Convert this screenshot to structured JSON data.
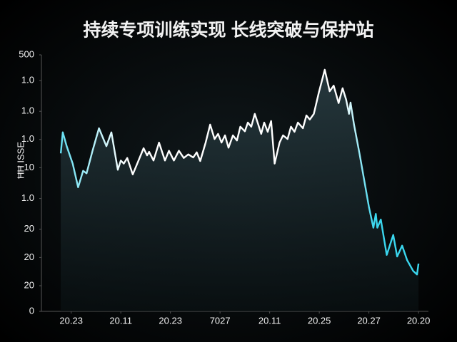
{
  "chart_data": {
    "type": "line",
    "title": "持续专项训练实现 长线突破与保护站",
    "ylabel": "ĦĦ ISSE",
    "xlim": [
      -6,
      72
    ],
    "ylim": [
      0,
      500
    ],
    "xticks": [
      {
        "value": 0,
        "label": "20.23"
      },
      {
        "value": 10,
        "label": "20.11"
      },
      {
        "value": 20,
        "label": "20.23"
      },
      {
        "value": 30,
        "label": "7027"
      },
      {
        "value": 40,
        "label": "20.11"
      },
      {
        "value": 50,
        "label": "20.25"
      },
      {
        "value": 60,
        "label": "20.27"
      },
      {
        "value": 70,
        "label": "20.20"
      }
    ],
    "yticks": [
      0,
      {
        "value": 50,
        "label": "20"
      },
      {
        "value": 105,
        "label": "20"
      },
      {
        "value": 160,
        "label": "20"
      },
      {
        "value": 220,
        "label": "1.0"
      },
      {
        "value": 280,
        "label": "10"
      },
      {
        "value": 335,
        "label": "1.0"
      },
      {
        "value": 390,
        "label": "1.0"
      },
      {
        "value": 450,
        "label": "1.0"
      },
      500
    ],
    "grid": false,
    "edge_color": "#3ad6ee",
    "series": [
      {
        "name": "series",
        "color": "#ffffff",
        "x": [
          -2.1,
          -1.7,
          -0.9,
          0.3,
          1.4,
          2.4,
          3.1,
          4.3,
          5.6,
          7.1,
          8.1,
          8.9,
          9.4,
          10.0,
          10.6,
          11.3,
          12.4,
          13.4,
          14.6,
          15.3,
          15.7,
          16.6,
          17.7,
          18.9,
          19.7,
          20.7,
          21.7,
          22.7,
          23.6,
          24.6,
          25.3,
          26.0,
          27.1,
          28.0,
          28.9,
          29.6,
          30.3,
          31.0,
          31.7,
          32.6,
          33.4,
          34.1,
          35.0,
          35.6,
          36.3,
          37.0,
          37.7,
          38.3,
          38.9,
          39.6,
          40.3,
          41.0,
          42.0,
          42.7,
          43.6,
          44.3,
          45.0,
          45.7,
          46.7,
          47.4,
          48.1,
          48.9,
          49.9,
          51.1,
          52.1,
          52.9,
          53.9,
          54.7,
          55.4,
          56.0,
          56.3,
          57.0,
          58.1,
          59.1,
          60.0,
          60.9,
          61.4,
          61.7,
          62.4,
          63.6,
          64.9,
          65.7,
          66.7,
          67.7,
          68.9,
          69.7,
          70.0
        ],
        "values": [
          308,
          349,
          322,
          288,
          242,
          274,
          269,
          313,
          357,
          322,
          349,
          304,
          276,
          294,
          288,
          299,
          267,
          290,
          318,
          304,
          311,
          294,
          329,
          294,
          313,
          294,
          313,
          299,
          306,
          300,
          310,
          293,
          329,
          364,
          336,
          346,
          329,
          343,
          319,
          343,
          333,
          360,
          351,
          368,
          360,
          385,
          364,
          346,
          368,
          350,
          371,
          288,
          329,
          343,
          336,
          360,
          350,
          368,
          357,
          382,
          374,
          385,
          426,
          471,
          429,
          440,
          406,
          435,
          413,
          385,
          407,
          364,
          308,
          253,
          204,
          163,
          190,
          163,
          179,
          110,
          149,
          107,
          128,
          100,
          79,
          72,
          93
        ]
      }
    ]
  }
}
